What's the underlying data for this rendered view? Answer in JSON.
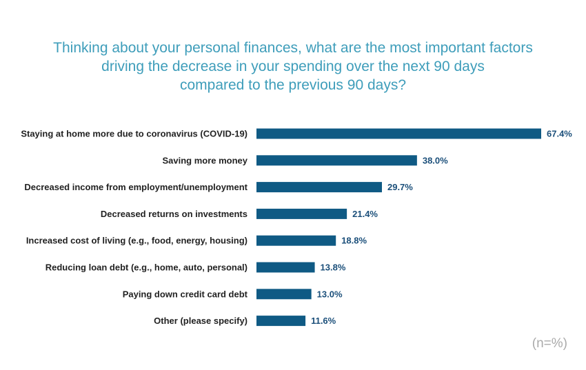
{
  "title_lines": [
    "Thinking about your personal finances, what are the most important factors",
    "driving the decrease in your spending over the next 90 days",
    "compared to the previous 90 days?"
  ],
  "note": "(n=%)",
  "colors": {
    "bar": "#0F5A84",
    "title": "#3E9DBA",
    "value_label": "#1B4F7A",
    "note": "#AAAAAA"
  },
  "chart_data": {
    "type": "bar",
    "orientation": "horizontal",
    "title": "Thinking about your personal finances, what are the most important factors driving the decrease in your spending over the next 90 days compared to the previous 90 days?",
    "categories": [
      "Staying at home more due to coronavirus (COVID-19)",
      "Saving more money",
      "Decreased income from employment/unemployment",
      "Decreased returns on investments",
      "Increased cost of living (e.g., food, energy, housing)",
      "Reducing loan debt (e.g., home, auto, personal)",
      "Paying down credit card debt",
      "Other (please specify)"
    ],
    "values": [
      67.4,
      38.0,
      29.7,
      21.4,
      18.8,
      13.8,
      13.0,
      11.6
    ],
    "value_labels": [
      "67.4%",
      "38.0%",
      "29.7%",
      "21.4%",
      "18.8%",
      "13.8%",
      "13.0%",
      "11.6%"
    ],
    "xlim": [
      0,
      67.4
    ],
    "grid": false,
    "legend": "none"
  }
}
